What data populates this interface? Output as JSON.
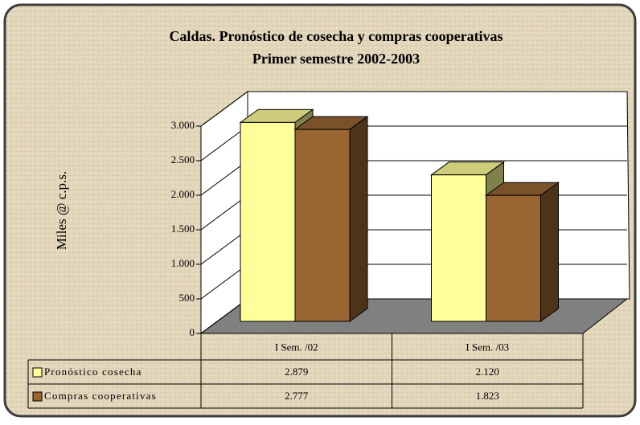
{
  "chart_data": {
    "type": "bar3d",
    "title": "Caldas. Pronóstico de cosecha y compras cooperativas",
    "subtitle": "Primer semestre 2002-2003",
    "y_label": "Miles @ c.p.s.",
    "categories": [
      "I Sem. /02",
      "I Sem. /03"
    ],
    "series": [
      {
        "name": "Pronóstico cosecha",
        "color": "#ffff99",
        "values": [
          2879,
          2120
        ],
        "value_labels": [
          "2.879",
          "2.120"
        ]
      },
      {
        "name": "Compras cooperativas",
        "color": "#996633",
        "values": [
          2777,
          1823
        ],
        "value_labels": [
          "2.777",
          "1.823"
        ]
      }
    ],
    "ylim": [
      0,
      3000
    ],
    "yticks": [
      0,
      500,
      {
        "value": 1000,
        "label": "1.000"
      },
      {
        "value": 1500,
        "label": "1.500"
      },
      {
        "value": 2000,
        "label": "2.000"
      },
      {
        "value": 2500,
        "label": "2.500"
      },
      {
        "value": 3000,
        "label": "3.000"
      }
    ],
    "grid": true
  }
}
